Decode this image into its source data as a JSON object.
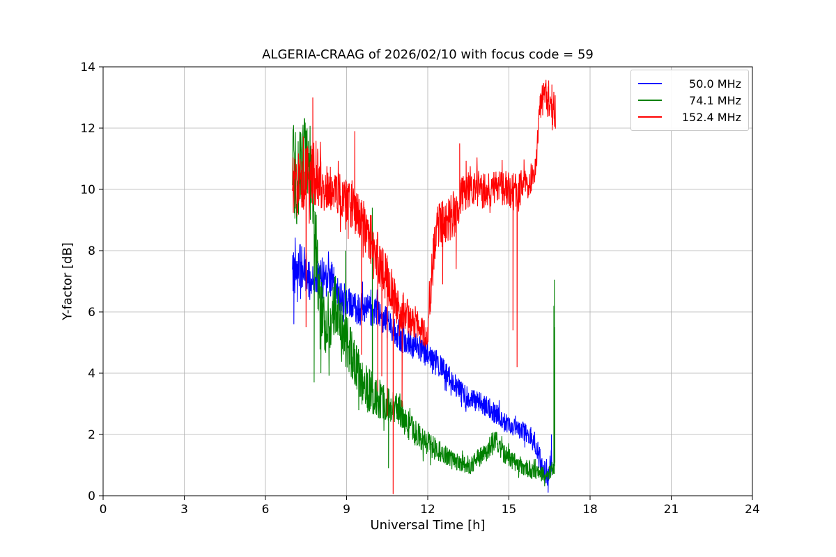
{
  "chart_data": {
    "type": "line",
    "title": "ALGERIA-CRAAG of 2026/02/10 with focus code = 59",
    "xlabel": "Universal Time [h]",
    "ylabel": "Y-factor [dB]",
    "xlim": [
      0,
      24
    ],
    "ylim": [
      0,
      14
    ],
    "xticks": [
      0,
      3,
      6,
      9,
      12,
      15,
      18,
      21,
      24
    ],
    "yticks": [
      0,
      2,
      4,
      6,
      8,
      10,
      12,
      14
    ],
    "grid": true,
    "grid_color": "#b0b0b0",
    "legend_position": "upper right",
    "series": [
      {
        "name": "50.0 MHz",
        "color": "#0000ff",
        "trend": [
          [
            7.0,
            7.2,
            0.9
          ],
          [
            7.15,
            7.6,
            0.8
          ],
          [
            7.4,
            7.4,
            0.8
          ],
          [
            7.7,
            7.0,
            0.6
          ],
          [
            8.0,
            7.1,
            0.6
          ],
          [
            8.3,
            7.4,
            0.7
          ],
          [
            8.6,
            6.7,
            0.6
          ],
          [
            9.0,
            6.3,
            0.55
          ],
          [
            9.5,
            6.1,
            0.55
          ],
          [
            10.0,
            6.0,
            0.5
          ],
          [
            10.5,
            5.7,
            0.5
          ],
          [
            11.0,
            5.2,
            0.5
          ],
          [
            11.5,
            4.9,
            0.45
          ],
          [
            12.0,
            4.6,
            0.45
          ],
          [
            12.5,
            4.2,
            0.4
          ],
          [
            13.0,
            3.6,
            0.4
          ],
          [
            13.5,
            3.2,
            0.35
          ],
          [
            14.0,
            3.0,
            0.35
          ],
          [
            14.5,
            2.7,
            0.35
          ],
          [
            15.0,
            2.3,
            0.3
          ],
          [
            15.5,
            2.1,
            0.3
          ],
          [
            15.9,
            1.9,
            0.35
          ],
          [
            16.2,
            1.0,
            0.4
          ],
          [
            16.45,
            0.6,
            0.3
          ],
          [
            16.6,
            1.3,
            0.5
          ]
        ],
        "spikes": [
          [
            7.05,
            5.6
          ],
          [
            16.45,
            0.1
          ],
          [
            16.57,
            2.0
          ]
        ]
      },
      {
        "name": "74.1 MHz",
        "color": "#008000",
        "trend": [
          [
            7.0,
            10.8,
            1.6
          ],
          [
            7.2,
            10.2,
            1.5
          ],
          [
            7.45,
            11.2,
            1.2
          ],
          [
            7.65,
            10.8,
            1.4
          ],
          [
            7.85,
            8.0,
            1.2
          ],
          [
            8.05,
            6.2,
            1.0
          ],
          [
            8.3,
            5.3,
            0.9
          ],
          [
            8.6,
            6.3,
            1.0
          ],
          [
            8.9,
            5.2,
            0.9
          ],
          [
            9.2,
            4.6,
            0.8
          ],
          [
            9.6,
            3.6,
            0.8
          ],
          [
            10.0,
            3.3,
            0.7
          ],
          [
            10.4,
            3.0,
            0.6
          ],
          [
            10.8,
            2.9,
            0.6
          ],
          [
            11.2,
            2.4,
            0.5
          ],
          [
            11.6,
            2.0,
            0.45
          ],
          [
            12.0,
            1.7,
            0.4
          ],
          [
            12.5,
            1.4,
            0.35
          ],
          [
            13.0,
            1.1,
            0.3
          ],
          [
            13.6,
            1.0,
            0.3
          ],
          [
            14.1,
            1.4,
            0.35
          ],
          [
            14.5,
            1.8,
            0.4
          ],
          [
            14.8,
            1.4,
            0.35
          ],
          [
            15.2,
            1.1,
            0.3
          ],
          [
            15.7,
            0.9,
            0.3
          ],
          [
            16.1,
            0.7,
            0.25
          ],
          [
            16.5,
            0.8,
            0.3
          ],
          [
            16.7,
            0.9,
            0.3
          ]
        ],
        "spikes": [
          [
            7.8,
            3.7
          ],
          [
            8.05,
            4.0
          ],
          [
            8.95,
            8.0
          ],
          [
            9.95,
            9.4
          ],
          [
            10.55,
            0.9
          ],
          [
            16.66,
            6.2
          ],
          [
            16.68,
            7.05
          ],
          [
            16.69,
            5.5
          ]
        ]
      },
      {
        "name": "152.4 MHz",
        "color": "#ff0000",
        "trend": [
          [
            7.0,
            10.3,
            1.3
          ],
          [
            7.3,
            10.1,
            1.0
          ],
          [
            7.6,
            10.4,
            1.1
          ],
          [
            7.8,
            10.6,
            1.2
          ],
          [
            8.1,
            10.1,
            0.8
          ],
          [
            8.5,
            10.0,
            0.7
          ],
          [
            8.9,
            9.7,
            0.7
          ],
          [
            9.2,
            9.5,
            0.8
          ],
          [
            9.6,
            8.9,
            0.8
          ],
          [
            10.0,
            8.2,
            0.8
          ],
          [
            10.4,
            7.2,
            0.9
          ],
          [
            10.8,
            6.3,
            0.8
          ],
          [
            11.2,
            5.9,
            0.6
          ],
          [
            11.6,
            5.6,
            0.5
          ],
          [
            12.0,
            5.2,
            0.5
          ],
          [
            12.15,
            7.5,
            0.9
          ],
          [
            12.4,
            8.8,
            0.8
          ],
          [
            12.7,
            9.0,
            0.8
          ],
          [
            13.0,
            9.2,
            0.8
          ],
          [
            13.3,
            9.9,
            0.6
          ],
          [
            13.7,
            10.1,
            0.6
          ],
          [
            14.1,
            9.9,
            0.6
          ],
          [
            14.5,
            10.0,
            0.6
          ],
          [
            14.9,
            10.0,
            0.6
          ],
          [
            15.3,
            9.9,
            0.7
          ],
          [
            15.7,
            10.2,
            0.5
          ],
          [
            16.0,
            10.6,
            0.5
          ],
          [
            16.15,
            12.9,
            0.6
          ],
          [
            16.35,
            13.0,
            0.6
          ],
          [
            16.55,
            12.9,
            0.7
          ],
          [
            16.72,
            12.2,
            1.0
          ]
        ],
        "spikes": [
          [
            7.5,
            5.5
          ],
          [
            7.75,
            13.0
          ],
          [
            9.3,
            11.9
          ],
          [
            9.55,
            4.6
          ],
          [
            10.15,
            3.4
          ],
          [
            10.3,
            3.9
          ],
          [
            10.5,
            2.6
          ],
          [
            10.72,
            0.05
          ],
          [
            11.05,
            2.9
          ],
          [
            12.55,
            6.9
          ],
          [
            13.05,
            7.4
          ],
          [
            13.18,
            11.5
          ],
          [
            15.15,
            5.4
          ],
          [
            15.3,
            4.2
          ]
        ]
      }
    ]
  }
}
